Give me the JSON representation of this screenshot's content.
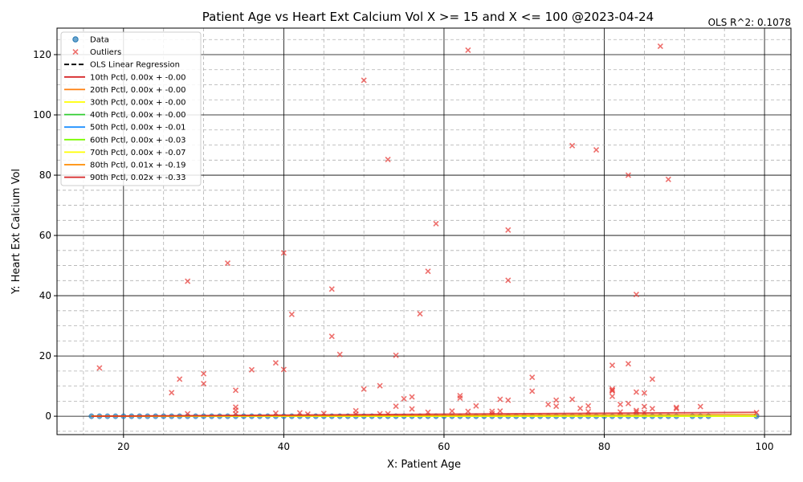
{
  "chart_data": {
    "type": "scatter",
    "title": "Patient Age vs Heart Ext Calcium Vol X >= 15 and X <=  100 @2023-04-24",
    "annotation": "OLS R^2: 0.1078",
    "xlabel": "X: Patient Age",
    "ylabel": "Y: Heart Ext Calcium Vol",
    "xlim": [
      11.7,
      103.3
    ],
    "ylim": [
      -6.1,
      128.8
    ],
    "xticks": [
      20,
      40,
      60,
      80,
      100
    ],
    "yticks": [
      0,
      20,
      40,
      60,
      80,
      100,
      120
    ],
    "grid": true,
    "legend_position": "top-left",
    "colors": {
      "data": "#1f77b4",
      "outliers": "#e8403c",
      "ols": "#000000",
      "p10": "#d62728",
      "p20": "#ff7f0e",
      "p30": "#ffff00",
      "p40": "#32cd32",
      "p50": "#1e90ff",
      "p60": "#7cfc00",
      "p70": "#ffff00",
      "p80": "#ff8c00",
      "p90": "#d62728"
    },
    "series": [
      {
        "name": "Data",
        "kind": "points",
        "x": [
          16,
          17,
          18,
          19,
          20,
          21,
          22,
          23,
          24,
          25,
          26,
          27,
          28,
          29,
          30,
          31,
          32,
          33,
          34,
          35,
          36,
          37,
          38,
          39,
          40,
          41,
          42,
          43,
          44,
          45,
          46,
          47,
          48,
          49,
          50,
          51,
          52,
          53,
          54,
          55,
          56,
          57,
          58,
          59,
          60,
          61,
          62,
          63,
          64,
          65,
          66,
          67,
          68,
          69,
          70,
          71,
          72,
          73,
          74,
          75,
          76,
          77,
          78,
          79,
          80,
          81,
          82,
          83,
          84,
          85,
          86,
          87,
          88,
          89,
          91,
          92,
          93,
          99
        ],
        "y": [
          0,
          0,
          0,
          0,
          0,
          0,
          0,
          0,
          0,
          0,
          0,
          0,
          0,
          0,
          0,
          0,
          0,
          0,
          0,
          0,
          0,
          0,
          0,
          0,
          0,
          0,
          0,
          0,
          0,
          0,
          0,
          0,
          0,
          0,
          0,
          0,
          0,
          0,
          0,
          0,
          0,
          0,
          0,
          0,
          0,
          0,
          0,
          0,
          0,
          0,
          0,
          0,
          0,
          0,
          0,
          0,
          0,
          0,
          0,
          0,
          0,
          0,
          0,
          0,
          0,
          0,
          0,
          0,
          0,
          0,
          0,
          0,
          0,
          0,
          0,
          0,
          0,
          0
        ]
      },
      {
        "name": "Outliers",
        "kind": "points",
        "x": [
          17,
          26,
          27,
          28,
          28,
          30,
          30,
          33,
          34,
          34,
          34,
          34,
          36,
          39,
          39,
          40,
          40,
          41,
          42,
          43,
          45,
          46,
          46,
          47,
          49,
          49,
          50,
          50,
          52,
          52,
          53,
          53,
          54,
          54,
          55,
          56,
          56,
          57,
          58,
          58,
          59,
          61,
          62,
          62,
          63,
          63,
          64,
          66,
          66,
          67,
          67,
          68,
          68,
          68,
          71,
          71,
          73,
          74,
          74,
          76,
          76,
          77,
          78,
          78,
          79,
          81,
          81,
          81,
          81,
          81,
          82,
          82,
          83,
          83,
          83,
          84,
          84,
          84,
          84,
          85,
          85,
          85,
          86,
          86,
          87,
          88,
          89,
          89,
          92,
          99
        ],
        "y": [
          16,
          7.8,
          12.3,
          0.8,
          44.8,
          10.8,
          14.1,
          50.8,
          8.6,
          3,
          2,
          0.8,
          15.4,
          17.7,
          1,
          54.2,
          15.5,
          33.8,
          1.1,
          0.7,
          0.9,
          42.2,
          26.5,
          20.5,
          1.8,
          0.7,
          9,
          111.5,
          10.1,
          0.8,
          85.2,
          0.8,
          3.3,
          20.2,
          5.8,
          6.4,
          2.4,
          34,
          48.1,
          1.3,
          63.9,
          1.7,
          6.8,
          6,
          121.5,
          1.6,
          3.4,
          1.6,
          0.8,
          5.6,
          1.7,
          45.1,
          61.8,
          5.3,
          12.9,
          8.3,
          3.9,
          5.3,
          3.3,
          89.8,
          5.6,
          2.6,
          1.5,
          3.4,
          88.4,
          16.9,
          9,
          8.4,
          6.6,
          8.6,
          1.4,
          3.9,
          80,
          17.4,
          4.2,
          40.4,
          8,
          1.9,
          1.4,
          7.7,
          3.2,
          1.2,
          2.5,
          12.3,
          122.8,
          78.6,
          2.5,
          2.9,
          3.2,
          1.2
        ]
      },
      {
        "name": "OLS Linear Regression",
        "kind": "line",
        "style": "dashed",
        "x": [
          16,
          99
        ],
        "y": [
          0,
          0
        ]
      },
      {
        "name": "10th Pctl, 0.00x + -0.00",
        "kind": "line",
        "x": [
          16,
          99
        ],
        "y": [
          0,
          0
        ]
      },
      {
        "name": "20th Pctl, 0.00x + -0.00",
        "kind": "line",
        "x": [
          16,
          99
        ],
        "y": [
          0,
          0
        ]
      },
      {
        "name": "30th Pctl, 0.00x + -0.00",
        "kind": "line",
        "x": [
          16,
          99
        ],
        "y": [
          0,
          0
        ]
      },
      {
        "name": "40th Pctl, 0.00x + -0.00",
        "kind": "line",
        "x": [
          16,
          99
        ],
        "y": [
          0,
          0
        ]
      },
      {
        "name": "50th Pctl, 0.00x + -0.01",
        "kind": "line",
        "x": [
          16,
          99
        ],
        "y": [
          0,
          0
        ]
      },
      {
        "name": "60th Pctl, 0.00x + -0.03",
        "kind": "line",
        "x": [
          16,
          99
        ],
        "y": [
          0,
          0
        ]
      },
      {
        "name": "70th Pctl, 0.00x + -0.07",
        "kind": "line",
        "x": [
          16,
          99
        ],
        "y": [
          0,
          0
        ]
      },
      {
        "name": "80th Pctl, 0.01x + -0.19",
        "kind": "line",
        "x": [
          16,
          99
        ],
        "y": [
          0,
          0.6
        ]
      },
      {
        "name": "90th Pctl, 0.02x + -0.33",
        "kind": "line",
        "x": [
          16,
          99
        ],
        "y": [
          0,
          1.3
        ]
      }
    ]
  }
}
